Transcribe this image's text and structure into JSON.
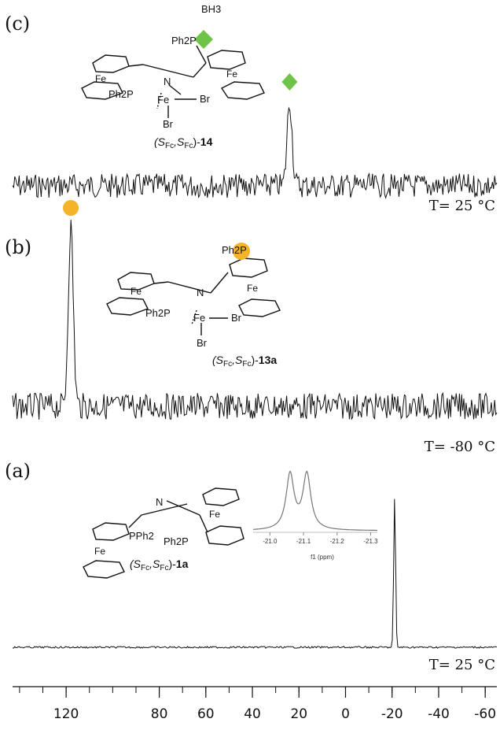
{
  "chart_data": {
    "type": "line",
    "xaxis": {
      "reversed": true,
      "range": [
        143,
        -65
      ],
      "ticks": [
        120,
        80,
        60,
        40,
        20,
        0,
        -20,
        -40,
        -60
      ],
      "tick_labels": [
        "120",
        "80",
        "60",
        "40",
        "20",
        "0",
        "-20",
        "-40",
        "-60"
      ],
      "minor_step": 10
    },
    "panels": [
      {
        "letter": "(c)",
        "temperature": "T= 25 °C",
        "peaks": [
          {
            "shift": 24,
            "rel_height": 1.0,
            "marker": "diamond"
          }
        ],
        "noise": 0.55,
        "compound": {
          "label_prefix": "(S",
          "sub1": "Fc",
          "sep": ",S",
          "sub2": "Fc",
          "close": ")-",
          "number": "14",
          "atoms": {
            "bh3": "BH3",
            "ph2p_top": "Ph2P",
            "n": "N",
            "fe1": "Fe",
            "fe2": "Fe",
            "fe_center": "Fe",
            "ph2p": "Ph2P",
            "br1": "Br",
            "br2": "Br"
          }
        }
      },
      {
        "letter": "(b)",
        "temperature": "T= -80 °C",
        "peaks": [
          {
            "shift": 118,
            "rel_height": 1.0,
            "marker": "circle"
          }
        ],
        "noise": 0.6,
        "compound": {
          "label_prefix": "(S",
          "sub1": "Fc",
          "sep": ",S",
          "sub2": "Fc",
          "close": ")-",
          "number": "13a",
          "atoms": {
            "ph2p_top": "Ph2P",
            "n": "N",
            "fe1": "Fe",
            "fe2": "Fe",
            "fe_center": "Fe",
            "ph2p": "Ph2P",
            "br1": "Br",
            "br2": "Br"
          }
        }
      },
      {
        "letter": "(a)",
        "temperature": "T= 25 °C",
        "peaks": [
          {
            "shift": -21.1,
            "rel_height": 1.0,
            "marker": "none"
          }
        ],
        "noise": 0.04,
        "compound": {
          "label_prefix": "(S",
          "sub1": "Fc",
          "sep": ",S",
          "sub2": "Fc",
          "close": ")-",
          "number": "1a",
          "atoms": {
            "n": "N",
            "fe1": "Fe",
            "fe2": "Fe",
            "pph2": "PPh2",
            "ph2p": "Ph2P"
          }
        },
        "inset": {
          "x_ticks": [
            "-21.0",
            "-21.1",
            "-21.2",
            "-21.3"
          ],
          "x_label": "f1 (ppm)",
          "peaks": [
            -21.06,
            -21.11
          ]
        }
      }
    ]
  },
  "colors": {
    "trace": "#111111",
    "marker": "#f5b32a",
    "diamond": "#6fc447",
    "inset_trace": "#777777"
  }
}
